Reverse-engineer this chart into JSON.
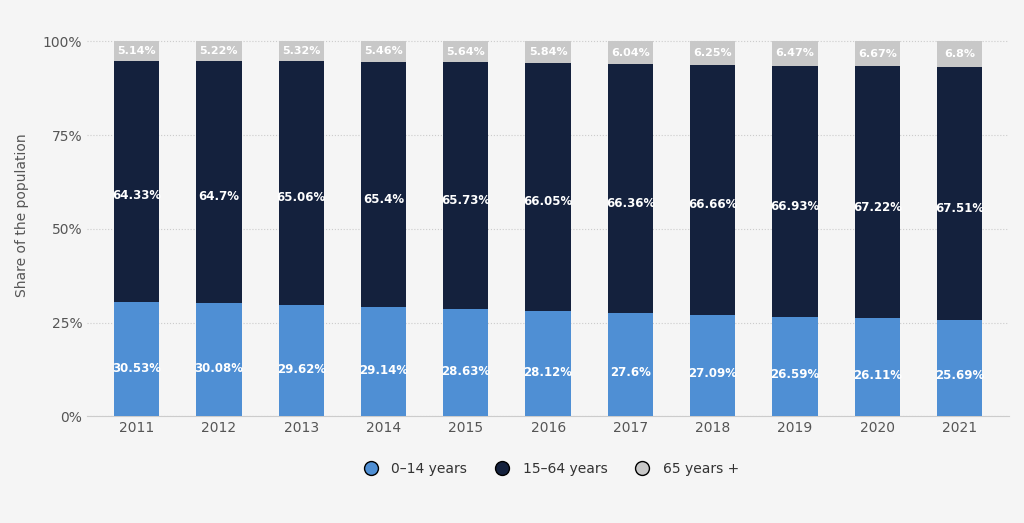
{
  "years": [
    "2011",
    "2012",
    "2013",
    "2014",
    "2015",
    "2016",
    "2017",
    "2018",
    "2019",
    "2020",
    "2021"
  ],
  "young": [
    30.53,
    30.08,
    29.62,
    29.14,
    28.63,
    28.12,
    27.6,
    27.09,
    26.59,
    26.11,
    25.69
  ],
  "working": [
    64.33,
    64.7,
    65.06,
    65.4,
    65.73,
    66.05,
    66.36,
    66.66,
    66.93,
    67.22,
    67.51
  ],
  "old": [
    5.14,
    5.22,
    5.32,
    5.46,
    5.64,
    5.84,
    6.04,
    6.25,
    6.47,
    6.67,
    6.8
  ],
  "young_labels": [
    "30.53%",
    "30.08%",
    "29.62%",
    "29.14%",
    "28.63%",
    "28.12%",
    "27.6%",
    "27.09%",
    "26.59%",
    "26.11%",
    "25.69%"
  ],
  "working_labels": [
    "64.33%",
    "64.7%",
    "65.06%",
    "65.4%",
    "65.73%",
    "66.05%",
    "66.36%",
    "66.66%",
    "66.93%",
    "67.22%",
    "67.51%"
  ],
  "old_labels": [
    "5.14%",
    "5.22%",
    "5.32%",
    "5.46%",
    "5.64%",
    "5.84%",
    "6.04%",
    "6.25%",
    "6.47%",
    "6.67%",
    "6.8%"
  ],
  "color_young": "#4f8fd4",
  "color_working": "#14213d",
  "color_old": "#c8c8c8",
  "ylabel": "Share of the population",
  "bg_color": "#f5f5f5",
  "legend_labels": [
    "0–14 years",
    "15–64 years",
    "65 years +"
  ]
}
